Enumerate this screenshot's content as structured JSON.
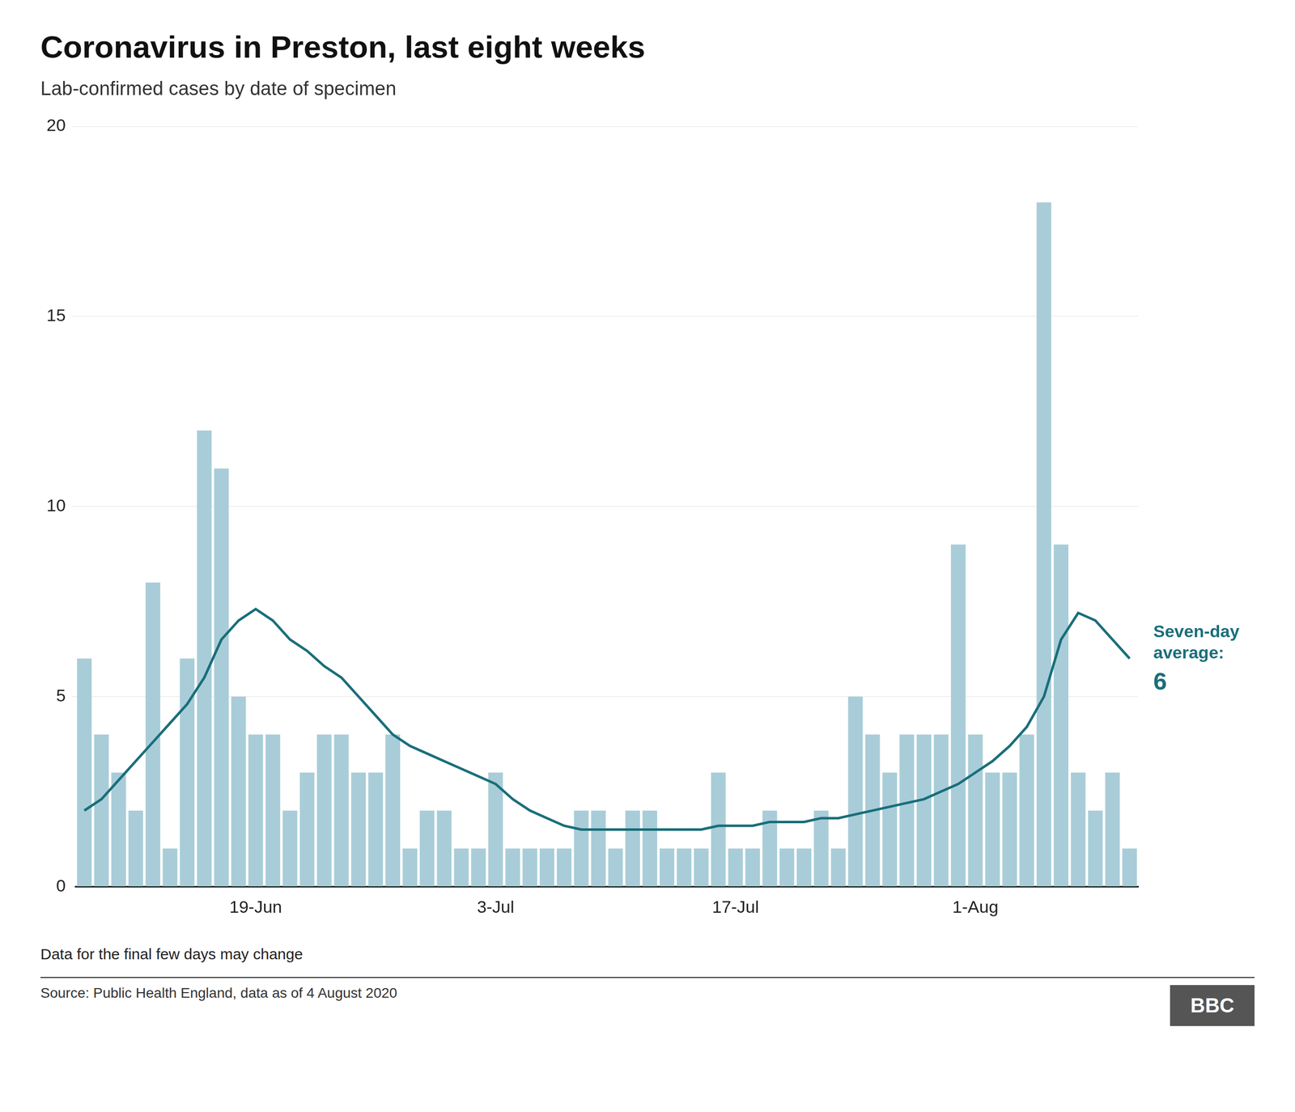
{
  "chart_data": {
    "type": "bar",
    "title": "Coronavirus in Preston, last eight weeks",
    "subtitle": "Lab-confirmed cases by date of specimen",
    "footnote": "Data for the final few days may change",
    "source": "Source: Public Health England, data as of 4 August 2020",
    "credit": "BBC",
    "annotations": [
      "Seven-day",
      "average:",
      "6"
    ],
    "categories": [
      null,
      null,
      null,
      null,
      null,
      null,
      null,
      null,
      null,
      null,
      "19-Jun",
      null,
      null,
      null,
      null,
      null,
      null,
      null,
      null,
      null,
      null,
      null,
      null,
      null,
      "3-Jul",
      null,
      null,
      null,
      null,
      null,
      null,
      null,
      null,
      null,
      null,
      null,
      null,
      null,
      "17-Jul",
      null,
      null,
      null,
      null,
      null,
      null,
      null,
      null,
      null,
      null,
      null,
      null,
      null,
      "1-Aug",
      null,
      null,
      null,
      null,
      null,
      null,
      null,
      null,
      null
    ],
    "series": [
      {
        "type": "bar",
        "color": "#a8cdd8",
        "values": [
          6,
          4,
          3,
          2,
          8,
          1,
          6,
          12,
          11,
          5,
          4,
          4,
          2,
          3,
          4,
          4,
          3,
          3,
          4,
          1,
          2,
          2,
          1,
          1,
          3,
          1,
          1,
          1,
          1,
          2,
          2,
          1,
          2,
          2,
          1,
          1,
          1,
          3,
          1,
          1,
          2,
          1,
          1,
          2,
          1,
          5,
          4,
          3,
          4,
          4,
          4,
          9,
          4,
          3,
          3,
          4,
          18,
          9,
          3,
          2,
          3,
          1
        ]
      },
      {
        "type": "line",
        "color": "#1a6e7a",
        "values": [
          2.0,
          2.3,
          2.8,
          3.3,
          3.8,
          4.3,
          4.8,
          5.5,
          6.5,
          7.0,
          7.3,
          7.0,
          6.5,
          6.2,
          5.8,
          5.5,
          5.0,
          4.5,
          4.0,
          3.7,
          3.5,
          3.3,
          3.1,
          2.9,
          2.7,
          2.3,
          2.0,
          1.8,
          1.6,
          1.5,
          1.5,
          1.5,
          1.5,
          1.5,
          1.5,
          1.5,
          1.5,
          1.6,
          1.6,
          1.6,
          1.7,
          1.7,
          1.7,
          1.8,
          1.8,
          1.9,
          2.0,
          2.1,
          2.2,
          2.3,
          2.5,
          2.7,
          3.0,
          3.3,
          3.7,
          4.2,
          5.0,
          6.5,
          7.2,
          7.0,
          6.5,
          6.0
        ]
      }
    ],
    "ylim": [
      0,
      20
    ],
    "yticks": [
      0,
      5,
      10,
      15,
      20
    ],
    "grid": true
  }
}
